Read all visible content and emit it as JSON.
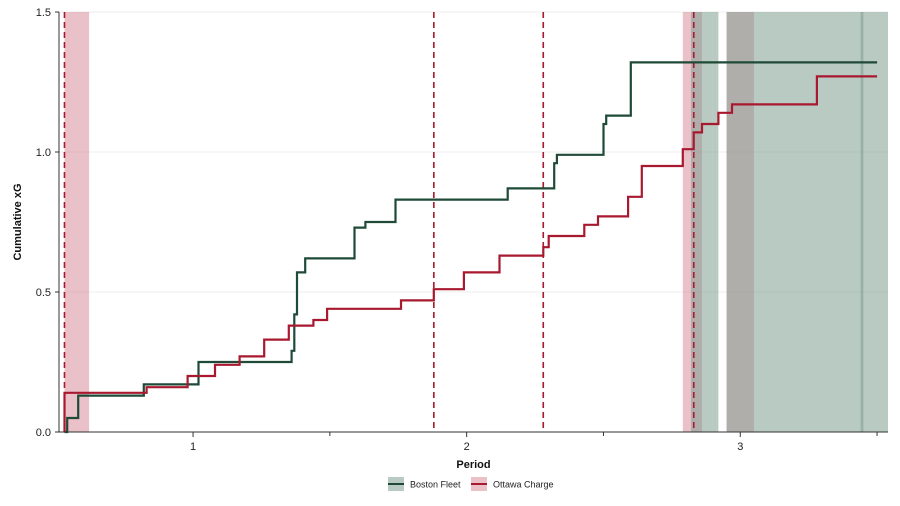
{
  "chart_data": {
    "type": "line",
    "xlabel": "Period",
    "ylabel": "Cumulative xG",
    "xlim": [
      0.51,
      3.54
    ],
    "ylim": [
      0,
      1.5
    ],
    "x_ticks": [
      1,
      2,
      3
    ],
    "x_tick_labels": [
      "1",
      "2",
      "3"
    ],
    "x_minor_ticks": [
      1.5,
      2.5,
      3.5
    ],
    "y_ticks": [
      0,
      0.5,
      1.0,
      1.5
    ],
    "y_tick_labels": [
      "0.0",
      "0.5",
      "1.0",
      "1.5"
    ],
    "grid": true,
    "legend_position": "bottom-center",
    "series": [
      {
        "name": "Boston Fleet",
        "color": "#1f4a37",
        "shade_color": "#7f9f90",
        "points": [
          [
            0.53,
            0.0
          ],
          [
            0.54,
            0.0
          ],
          [
            0.54,
            0.05
          ],
          [
            0.58,
            0.05
          ],
          [
            0.58,
            0.13
          ],
          [
            0.82,
            0.13
          ],
          [
            0.82,
            0.17
          ],
          [
            1.02,
            0.17
          ],
          [
            1.02,
            0.25
          ],
          [
            1.36,
            0.25
          ],
          [
            1.36,
            0.29
          ],
          [
            1.37,
            0.29
          ],
          [
            1.37,
            0.42
          ],
          [
            1.38,
            0.42
          ],
          [
            1.38,
            0.57
          ],
          [
            1.41,
            0.57
          ],
          [
            1.41,
            0.62
          ],
          [
            1.59,
            0.62
          ],
          [
            1.59,
            0.73
          ],
          [
            1.63,
            0.73
          ],
          [
            1.63,
            0.75
          ],
          [
            1.74,
            0.75
          ],
          [
            1.74,
            0.83
          ],
          [
            2.15,
            0.83
          ],
          [
            2.15,
            0.87
          ],
          [
            2.32,
            0.87
          ],
          [
            2.32,
            0.96
          ],
          [
            2.33,
            0.96
          ],
          [
            2.33,
            0.99
          ],
          [
            2.5,
            0.99
          ],
          [
            2.5,
            1.1
          ],
          [
            2.51,
            1.1
          ],
          [
            2.51,
            1.13
          ],
          [
            2.6,
            1.13
          ],
          [
            2.6,
            1.32
          ],
          [
            3.5,
            1.32
          ]
        ]
      },
      {
        "name": "Ottawa Charge",
        "color": "#a8182f",
        "shade_color": "#d88c9c",
        "points": [
          [
            0.53,
            0.0
          ],
          [
            0.53,
            0.14
          ],
          [
            0.83,
            0.14
          ],
          [
            0.83,
            0.16
          ],
          [
            0.98,
            0.16
          ],
          [
            0.98,
            0.2
          ],
          [
            1.08,
            0.2
          ],
          [
            1.08,
            0.24
          ],
          [
            1.17,
            0.24
          ],
          [
            1.17,
            0.27
          ],
          [
            1.26,
            0.27
          ],
          [
            1.26,
            0.33
          ],
          [
            1.35,
            0.33
          ],
          [
            1.35,
            0.38
          ],
          [
            1.44,
            0.38
          ],
          [
            1.44,
            0.4
          ],
          [
            1.49,
            0.4
          ],
          [
            1.49,
            0.44
          ],
          [
            1.76,
            0.44
          ],
          [
            1.76,
            0.47
          ],
          [
            1.88,
            0.47
          ],
          [
            1.88,
            0.51
          ],
          [
            1.99,
            0.51
          ],
          [
            1.99,
            0.57
          ],
          [
            2.12,
            0.57
          ],
          [
            2.12,
            0.63
          ],
          [
            2.28,
            0.63
          ],
          [
            2.28,
            0.66
          ],
          [
            2.3,
            0.66
          ],
          [
            2.3,
            0.7
          ],
          [
            2.43,
            0.7
          ],
          [
            2.43,
            0.74
          ],
          [
            2.48,
            0.74
          ],
          [
            2.48,
            0.77
          ],
          [
            2.59,
            0.77
          ],
          [
            2.59,
            0.84
          ],
          [
            2.64,
            0.84
          ],
          [
            2.64,
            0.95
          ],
          [
            2.79,
            0.95
          ],
          [
            2.79,
            1.01
          ],
          [
            2.83,
            1.01
          ],
          [
            2.83,
            1.07
          ],
          [
            2.86,
            1.07
          ],
          [
            2.86,
            1.1
          ],
          [
            2.92,
            1.1
          ],
          [
            2.92,
            1.14
          ],
          [
            2.97,
            1.14
          ],
          [
            2.97,
            1.17
          ],
          [
            3.28,
            1.17
          ],
          [
            3.28,
            1.27
          ],
          [
            3.5,
            1.27
          ]
        ]
      }
    ],
    "event_lines": [
      {
        "team": "Ottawa Charge",
        "x": 0.53
      },
      {
        "team": "Ottawa Charge",
        "x": 1.88
      },
      {
        "team": "Ottawa Charge",
        "x": 2.28
      },
      {
        "team": "Ottawa Charge",
        "x": 2.83
      }
    ],
    "shaded_intervals": [
      {
        "team": "Ottawa Charge",
        "from": 0.53,
        "to": 0.62
      },
      {
        "team": "Ottawa Charge",
        "from": 2.79,
        "to": 2.86
      },
      {
        "team": "Boston Fleet",
        "from": 2.82,
        "to": 2.9
      },
      {
        "team": "Boston Fleet",
        "from": 2.9,
        "to": 2.92
      },
      {
        "team": "Ottawa Charge",
        "from": 2.95,
        "to": 3.05
      },
      {
        "team": "Boston Fleet",
        "from": 2.95,
        "to": 3.05
      },
      {
        "team": "Boston Fleet",
        "from": 3.05,
        "to": 3.2
      },
      {
        "team": "Boston Fleet",
        "from": 3.2,
        "to": 3.54
      },
      {
        "team": "Boston Fleet",
        "from": 3.44,
        "to": 3.45
      }
    ]
  }
}
